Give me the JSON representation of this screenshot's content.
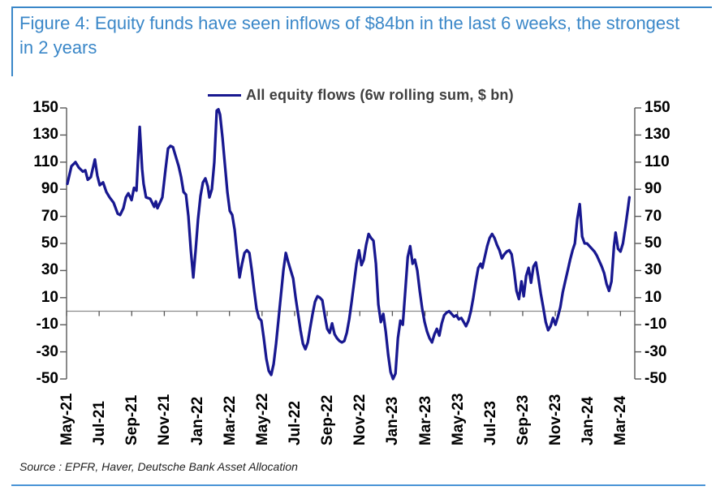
{
  "figure": {
    "title": "Figure 4: Equity funds have seen inflows of $84bn in the last 6 weeks, the strongest in 2 years",
    "source": "Source : EPFR, Haver, Deutsche Bank Asset Allocation"
  },
  "legend": {
    "label": "All equity flows (6w rolling sum, $ bn)"
  },
  "colors": {
    "title_blue": "#3a87c8",
    "rule_blue": "#4a94d6",
    "series_navy": "#181890",
    "zero_line_gray": "#8a8a8a",
    "axis_gray": "#595959",
    "tick_text": "#000000",
    "legend_text": "#3f3f3f"
  },
  "chart_data": {
    "type": "line",
    "title": "Figure 4: Equity funds have seen inflows of $84bn in the last 6 weeks, the strongest in 2 years",
    "legend_entries": [
      "All equity flows (6w rolling sum, $ bn)"
    ],
    "legend_position": "top-center",
    "x_unit": "months_since_May-2021",
    "x_tick_labels": [
      "May-21",
      "Jul-21",
      "Sep-21",
      "Nov-21",
      "Jan-22",
      "Mar-22",
      "May-22",
      "Jul-22",
      "Sep-22",
      "Nov-22",
      "Jan-23",
      "Mar-23",
      "May-23",
      "Jul-23",
      "Sep-23",
      "Nov-23",
      "Jan-24",
      "Mar-24"
    ],
    "x_tick_months": [
      0,
      2,
      4,
      6,
      8,
      10,
      12,
      14,
      16,
      18,
      20,
      22,
      24,
      26,
      28,
      30,
      32,
      34
    ],
    "y_ticks": [
      150,
      130,
      110,
      90,
      70,
      50,
      30,
      10,
      -10,
      -30,
      -50
    ],
    "ylim": [
      -50,
      150
    ],
    "grid": false,
    "zero_line": true,
    "mirrored_right_axis": true,
    "series": [
      {
        "name": "All equity flows (6w rolling sum, $ bn)",
        "color": "#181890",
        "points": [
          [
            0.05,
            94
          ],
          [
            0.3,
            107
          ],
          [
            0.55,
            110
          ],
          [
            0.75,
            106
          ],
          [
            1.0,
            103
          ],
          [
            1.15,
            104
          ],
          [
            1.3,
            97
          ],
          [
            1.49,
            99
          ],
          [
            1.74,
            112
          ],
          [
            1.89,
            100
          ],
          [
            2.04,
            93
          ],
          [
            2.24,
            95
          ],
          [
            2.44,
            88
          ],
          [
            2.64,
            84
          ],
          [
            2.89,
            80
          ],
          [
            3.14,
            72
          ],
          [
            3.29,
            71
          ],
          [
            3.49,
            76
          ],
          [
            3.64,
            84
          ],
          [
            3.79,
            87
          ],
          [
            3.99,
            82
          ],
          [
            4.14,
            91
          ],
          [
            4.29,
            89
          ],
          [
            4.49,
            136
          ],
          [
            4.64,
            105
          ],
          [
            4.73,
            94
          ],
          [
            4.88,
            84
          ],
          [
            5.13,
            83
          ],
          [
            5.38,
            77
          ],
          [
            5.48,
            81
          ],
          [
            5.58,
            76
          ],
          [
            5.73,
            80
          ],
          [
            5.88,
            84
          ],
          [
            6.08,
            105
          ],
          [
            6.23,
            120
          ],
          [
            6.38,
            122
          ],
          [
            6.53,
            121
          ],
          [
            6.73,
            113
          ],
          [
            6.88,
            107
          ],
          [
            7.03,
            99
          ],
          [
            7.18,
            88
          ],
          [
            7.33,
            86
          ],
          [
            7.48,
            70
          ],
          [
            7.63,
            45
          ],
          [
            7.78,
            25
          ],
          [
            7.92,
            45
          ],
          [
            8.07,
            68
          ],
          [
            8.22,
            85
          ],
          [
            8.37,
            95
          ],
          [
            8.52,
            98
          ],
          [
            8.67,
            92
          ],
          [
            8.77,
            84
          ],
          [
            8.92,
            90
          ],
          [
            9.07,
            110
          ],
          [
            9.22,
            148
          ],
          [
            9.32,
            149
          ],
          [
            9.42,
            145
          ],
          [
            9.57,
            128
          ],
          [
            9.72,
            108
          ],
          [
            9.87,
            88
          ],
          [
            10.02,
            74
          ],
          [
            10.17,
            71
          ],
          [
            10.32,
            60
          ],
          [
            10.47,
            42
          ],
          [
            10.62,
            25
          ],
          [
            10.77,
            35
          ],
          [
            10.92,
            43
          ],
          [
            11.07,
            45
          ],
          [
            11.22,
            43
          ],
          [
            11.37,
            30
          ],
          [
            11.52,
            15
          ],
          [
            11.66,
            2
          ],
          [
            11.81,
            -5
          ],
          [
            11.96,
            -7
          ],
          [
            12.11,
            -20
          ],
          [
            12.26,
            -35
          ],
          [
            12.41,
            -44
          ],
          [
            12.56,
            -47
          ],
          [
            12.71,
            -39
          ],
          [
            12.86,
            -24
          ],
          [
            13.01,
            -6
          ],
          [
            13.16,
            12
          ],
          [
            13.31,
            30
          ],
          [
            13.46,
            43
          ],
          [
            13.61,
            36
          ],
          [
            13.76,
            30
          ],
          [
            13.91,
            24
          ],
          [
            14.06,
            10
          ],
          [
            14.21,
            -2
          ],
          [
            14.36,
            -14
          ],
          [
            14.51,
            -24
          ],
          [
            14.66,
            -28
          ],
          [
            14.81,
            -23
          ],
          [
            14.96,
            -12
          ],
          [
            15.1,
            -2
          ],
          [
            15.25,
            7
          ],
          [
            15.4,
            11
          ],
          [
            15.55,
            10
          ],
          [
            15.7,
            8
          ],
          [
            15.85,
            -3
          ],
          [
            16.0,
            -13
          ],
          [
            16.15,
            -16
          ],
          [
            16.3,
            -9
          ],
          [
            16.45,
            -17
          ],
          [
            16.6,
            -20
          ],
          [
            16.75,
            -22
          ],
          [
            16.9,
            -23
          ],
          [
            17.05,
            -22
          ],
          [
            17.2,
            -16
          ],
          [
            17.35,
            -6
          ],
          [
            17.5,
            7
          ],
          [
            17.65,
            21
          ],
          [
            17.8,
            35
          ],
          [
            17.95,
            45
          ],
          [
            18.1,
            34
          ],
          [
            18.24,
            38
          ],
          [
            18.39,
            49
          ],
          [
            18.54,
            57
          ],
          [
            18.69,
            54
          ],
          [
            18.84,
            52
          ],
          [
            18.99,
            35
          ],
          [
            19.14,
            5
          ],
          [
            19.29,
            -8
          ],
          [
            19.44,
            -2
          ],
          [
            19.59,
            -15
          ],
          [
            19.74,
            -32
          ],
          [
            19.89,
            -45
          ],
          [
            20.04,
            -50
          ],
          [
            20.19,
            -46
          ],
          [
            20.34,
            -20
          ],
          [
            20.49,
            -7
          ],
          [
            20.64,
            -10
          ],
          [
            20.79,
            15
          ],
          [
            20.94,
            40
          ],
          [
            21.09,
            48
          ],
          [
            21.24,
            35
          ],
          [
            21.38,
            38
          ],
          [
            21.53,
            30
          ],
          [
            21.68,
            15
          ],
          [
            21.83,
            2
          ],
          [
            21.98,
            -8
          ],
          [
            22.13,
            -15
          ],
          [
            22.28,
            -20
          ],
          [
            22.43,
            -23
          ],
          [
            22.58,
            -17
          ],
          [
            22.73,
            -13
          ],
          [
            22.88,
            -18
          ],
          [
            23.03,
            -9
          ],
          [
            23.18,
            -3
          ],
          [
            23.33,
            -1
          ],
          [
            23.48,
            0
          ],
          [
            23.63,
            -2
          ],
          [
            23.78,
            -4
          ],
          [
            23.93,
            -3
          ],
          [
            24.08,
            -6
          ],
          [
            24.23,
            -5
          ],
          [
            24.38,
            -8
          ],
          [
            24.52,
            -11
          ],
          [
            24.67,
            -7
          ],
          [
            24.82,
            0
          ],
          [
            24.97,
            10
          ],
          [
            25.12,
            22
          ],
          [
            25.27,
            32
          ],
          [
            25.42,
            35
          ],
          [
            25.52,
            32
          ],
          [
            25.67,
            40
          ],
          [
            25.82,
            48
          ],
          [
            25.97,
            54
          ],
          [
            26.12,
            57
          ],
          [
            26.27,
            54
          ],
          [
            26.42,
            49
          ],
          [
            26.57,
            45
          ],
          [
            26.72,
            39
          ],
          [
            26.87,
            42
          ],
          [
            27.02,
            44
          ],
          [
            27.17,
            45
          ],
          [
            27.32,
            42
          ],
          [
            27.47,
            30
          ],
          [
            27.62,
            15
          ],
          [
            27.77,
            9
          ],
          [
            27.92,
            22
          ],
          [
            28.06,
            11
          ],
          [
            28.21,
            26
          ],
          [
            28.36,
            32
          ],
          [
            28.51,
            21
          ],
          [
            28.66,
            33
          ],
          [
            28.81,
            36
          ],
          [
            28.96,
            25
          ],
          [
            29.11,
            13
          ],
          [
            29.26,
            3
          ],
          [
            29.41,
            -8
          ],
          [
            29.56,
            -14
          ],
          [
            29.71,
            -11
          ],
          [
            29.86,
            -5
          ],
          [
            30.01,
            -10
          ],
          [
            30.16,
            -4
          ],
          [
            30.31,
            3
          ],
          [
            30.46,
            14
          ],
          [
            30.61,
            22
          ],
          [
            30.76,
            30
          ],
          [
            30.91,
            38
          ],
          [
            31.06,
            45
          ],
          [
            31.2,
            50
          ],
          [
            31.35,
            68
          ],
          [
            31.5,
            79
          ],
          [
            31.65,
            55
          ],
          [
            31.8,
            50
          ],
          [
            31.95,
            50
          ],
          [
            32.1,
            48
          ],
          [
            32.25,
            46
          ],
          [
            32.4,
            44
          ],
          [
            32.55,
            41
          ],
          [
            32.7,
            37
          ],
          [
            32.85,
            33
          ],
          [
            33.0,
            28
          ],
          [
            33.15,
            20
          ],
          [
            33.3,
            15
          ],
          [
            33.45,
            22
          ],
          [
            33.6,
            48
          ],
          [
            33.7,
            58
          ],
          [
            33.85,
            46
          ],
          [
            34.0,
            44
          ],
          [
            34.15,
            50
          ],
          [
            34.3,
            62
          ],
          [
            34.45,
            75
          ],
          [
            34.55,
            84
          ]
        ]
      }
    ],
    "source": "Source : EPFR, Haver, Deutsche Bank Asset Allocation"
  }
}
